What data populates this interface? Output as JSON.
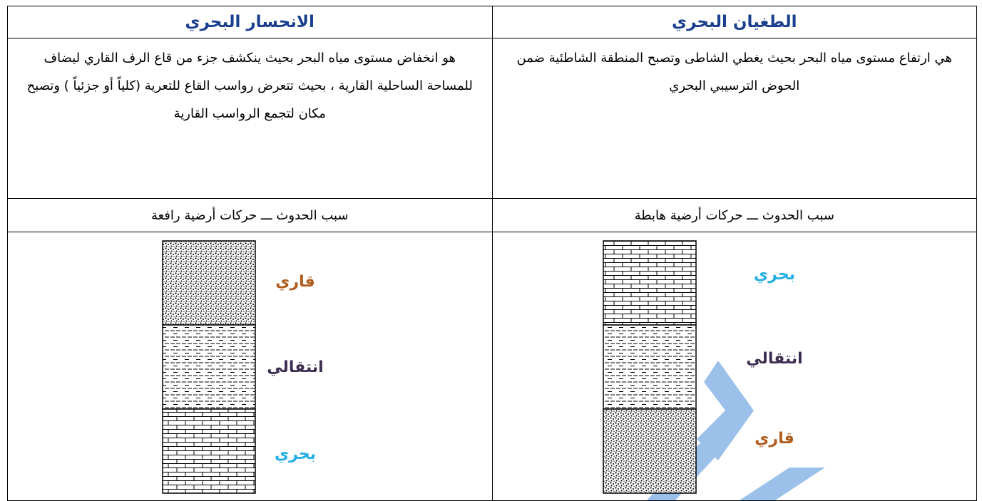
{
  "table": {
    "headers": [
      "الطغيان البحري",
      "الانحسار البحري"
    ],
    "definitions": [
      "هي ارتفاع مستوى مياه البحر بحيث يغطي الشاطى وتصبح المنطقة الشاطئية ضمن الحوض الترسيبي البحري",
      "هو انخفاض مستوى مياه البحر بحيث ينكشف جزء من قاع الرف القاري ليضاف للمساحة الساحلية القارية ، بحيث تتعرض رواسب القاع للتعرية (كلياً أو جزئياً ) وتصبح مكان لتجمع الرواسب القارية"
    ],
    "causes": [
      "سبب الحدوث ـــ حركات أرضية هابطة",
      "سبب الحدوث ـــ حركات أرضية رافعة"
    ],
    "layers": [
      [
        "بحري",
        "انتقالي",
        "قاري"
      ],
      [
        "قاري",
        "انتقالي",
        "بحري"
      ]
    ]
  }
}
